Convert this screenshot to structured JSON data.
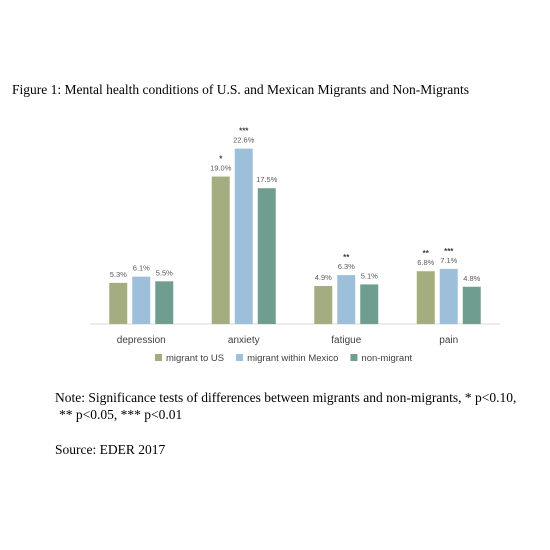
{
  "figure_title": "Figure 1: Mental health conditions of U.S. and Mexican Migrants and Non-Migrants",
  "note_line1": "Note: Significance tests of differences between migrants and non-migrants, * p<0.10,",
  "note_line2": "** p<0.05, *** p<0.01",
  "source": "Source: EDER 2017",
  "chart_data": {
    "type": "bar",
    "categories": [
      "depression",
      "anxiety",
      "fatigue",
      "pain"
    ],
    "series": [
      {
        "name": "migrant to US",
        "color": "#a4ad7f",
        "values": [
          5.3,
          19.0,
          4.9,
          6.8
        ],
        "labels": [
          "5.3%",
          "19.0%",
          "4.9%",
          "6.8%"
        ],
        "significance": [
          "",
          "*",
          "",
          "**"
        ]
      },
      {
        "name": "migrant within Mexico",
        "color": "#9ebfd9",
        "values": [
          6.1,
          22.6,
          6.3,
          7.1
        ],
        "labels": [
          "6.1%",
          "22.6%",
          "6.3%",
          "7.1%"
        ],
        "significance": [
          "",
          "***",
          "**",
          "***"
        ]
      },
      {
        "name": "non-migrant",
        "color": "#6f9e90",
        "values": [
          5.5,
          17.5,
          5.1,
          4.8
        ],
        "labels": [
          "5.5%",
          "17.5%",
          "5.1%",
          "4.8%"
        ],
        "significance": [
          "",
          "",
          "",
          ""
        ]
      }
    ],
    "ylim": [
      0,
      25
    ],
    "grid": false,
    "legend_position": "bottom"
  }
}
